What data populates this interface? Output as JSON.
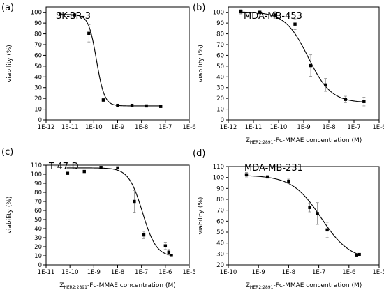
{
  "chart_data": [
    {
      "type": "scatter",
      "panel": "(a)",
      "title": "SK-BR-3",
      "xlabel_sub": "HER2:2891",
      "xlabel_rest": "-Fc-MMAE concentration (M)",
      "ylabel": "viability (%)",
      "x_scale": "log",
      "xlim": [
        1e-12,
        1e-06
      ],
      "ylim": [
        0,
        105
      ],
      "xticks": [
        "1E-12",
        "1E-11",
        "1E-10",
        "1E-9",
        "1E-8",
        "1E-7",
        "1E-6"
      ],
      "yticks": [
        0,
        10,
        20,
        30,
        40,
        50,
        60,
        70,
        80,
        90,
        100
      ],
      "show_x_label": false,
      "series": [
        {
          "x": [
            3.9e-12,
            1.56e-11,
            6.25e-11,
            2.5e-10,
            1e-09,
            4e-09,
            1.6e-08,
            6.4e-08
          ],
          "y": [
            98.5,
            97.5,
            80.5,
            18.5,
            13.5,
            13.5,
            13,
            12.5
          ],
          "err": [
            1,
            1,
            8,
            1.5,
            0.5,
            0.5,
            0.5,
            0.5
          ]
        }
      ],
      "fit": {
        "top": 98,
        "bottom": 13,
        "ec50": 1.3e-10,
        "hill": 2.6
      }
    },
    {
      "type": "scatter",
      "panel": "(b)",
      "title": "MDA-MB-453",
      "xlabel_sub": "HER2:2891",
      "xlabel_rest": "-Fc-MMAE concentration (M)",
      "ylabel": "viability (%)",
      "x_scale": "log",
      "xlim": [
        1e-12,
        1e-06
      ],
      "ylim": [
        0,
        105
      ],
      "xticks": [
        "1E-12",
        "1E-11",
        "1E-10",
        "1E-9",
        "1E-8",
        "1E-7",
        "1E-6"
      ],
      "yticks": [
        0,
        10,
        20,
        30,
        40,
        50,
        60,
        70,
        80,
        90,
        100
      ],
      "show_x_label": true,
      "series": [
        {
          "x": [
            3.2e-12,
            1.8e-11,
            7.2e-11,
            4.5e-10,
            1.9e-09,
            7.4e-09,
            4.6e-08,
            2.5e-07
          ],
          "y": [
            100.5,
            100,
            97.5,
            89,
            50.5,
            32.5,
            19,
            17
          ],
          "err": [
            2,
            2,
            3,
            5,
            10,
            6,
            3,
            4
          ]
        }
      ],
      "fit": {
        "top": 100.5,
        "bottom": 16,
        "ec50": 1.5e-09,
        "hill": 0.95
      }
    },
    {
      "type": "scatter",
      "panel": "(c)",
      "title": "T-47-D",
      "xlabel_sub": "HER2:2891",
      "xlabel_rest": "-Fc-MMAE concentration (M)",
      "ylabel": "viability (%)",
      "x_scale": "log",
      "xlim": [
        1e-11,
        1e-05
      ],
      "ylim": [
        0,
        110
      ],
      "xticks": [
        "1E-11",
        "1E-10",
        "1E-9",
        "1E-8",
        "1E-7",
        "1E-6",
        "1E-5"
      ],
      "yticks": [
        0,
        10,
        20,
        30,
        40,
        50,
        60,
        70,
        80,
        90,
        100,
        110
      ],
      "show_x_label": true,
      "series": [
        {
          "x": [
            8e-11,
            4e-10,
            2e-09,
            1e-08,
            5e-08,
            1.25e-07,
            1e-06,
            1.4e-06,
            1.8e-06
          ],
          "y": [
            101,
            103,
            107.5,
            107,
            70,
            33,
            21,
            14,
            10.5
          ],
          "err": [
            1,
            1,
            1,
            1,
            12,
            4,
            4,
            3,
            1
          ]
        }
      ],
      "fit": {
        "top": 107,
        "bottom": 9,
        "ec50": 1.1e-07,
        "hill": 1.5
      }
    },
    {
      "type": "scatter",
      "panel": "(d)",
      "title": "MDA-MB-231",
      "xlabel_sub": "HER2:2891",
      "xlabel_rest": "-Fc-MMAE concentration (M)",
      "ylabel": "viability (%)",
      "x_scale": "log",
      "xlim": [
        1e-10,
        1e-05
      ],
      "ylim": [
        20,
        110
      ],
      "xticks": [
        "1E-10",
        "1E-9",
        "1E-8",
        "1E-7",
        "1E-6",
        "1E-5"
      ],
      "yticks": [
        20,
        30,
        40,
        50,
        60,
        70,
        80,
        90,
        100,
        110
      ],
      "show_x_label": true,
      "series": [
        {
          "x": [
            4e-10,
            2e-09,
            1e-08,
            5e-08,
            9e-08,
            1.9e-07,
            1.8e-06,
            2.2e-06
          ],
          "y": [
            102.5,
            100.5,
            96.5,
            72.5,
            67,
            52,
            28.5,
            29.5
          ],
          "err": [
            2,
            1,
            2,
            4,
            10,
            7,
            1,
            1
          ]
        }
      ],
      "fit": {
        "top": 102,
        "bottom": 24,
        "ec50": 1.2e-07,
        "hill": 0.9
      }
    }
  ]
}
